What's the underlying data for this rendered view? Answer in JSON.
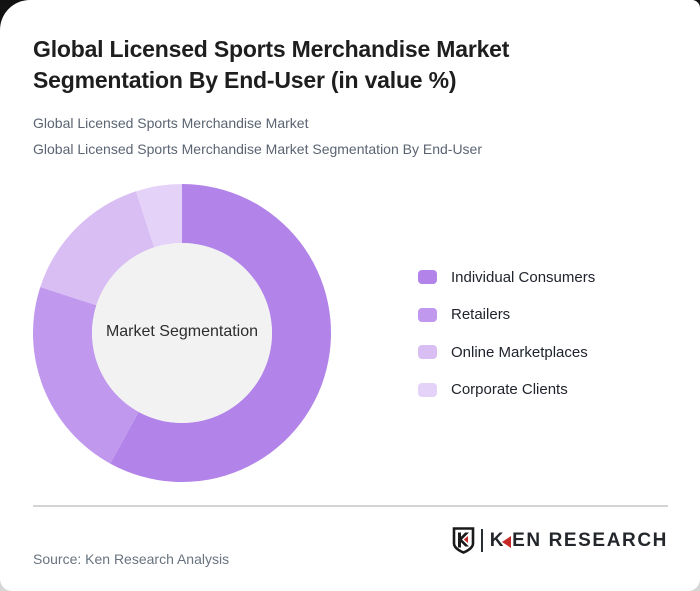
{
  "header": {
    "title": "Global Licensed Sports Merchandise Market Segmentation By End-User (in value %)",
    "subtitle1": "Global Licensed Sports Merchandise Market",
    "subtitle2": "Global Licensed Sports Merchandise Market Segmentation By End-User"
  },
  "chart_data": {
    "type": "pie",
    "subtype": "donut",
    "title": "Global Licensed Sports Merchandise Market Segmentation By End-User (in value %)",
    "center_label": "Market Segmentation",
    "categories": [
      "Individual Consumers",
      "Retailers",
      "Online Marketplaces",
      "Corporate Clients"
    ],
    "values": [
      58,
      22,
      15,
      5
    ],
    "unit": "%",
    "colors": [
      "#b283e9",
      "#c098ed",
      "#d9bef4",
      "#e4d2f8"
    ],
    "hole_color": "#f2f2f2",
    "start_angle_deg": 0,
    "direction": "clockwise",
    "legend_position": "right"
  },
  "footer": {
    "source": "Source: Ken Research Analysis",
    "logo": {
      "shield_letter": "K",
      "text_first_letter": "K",
      "text_rest": "EN RESEARCH",
      "red": "#c62828",
      "dark": "#23262b"
    }
  }
}
